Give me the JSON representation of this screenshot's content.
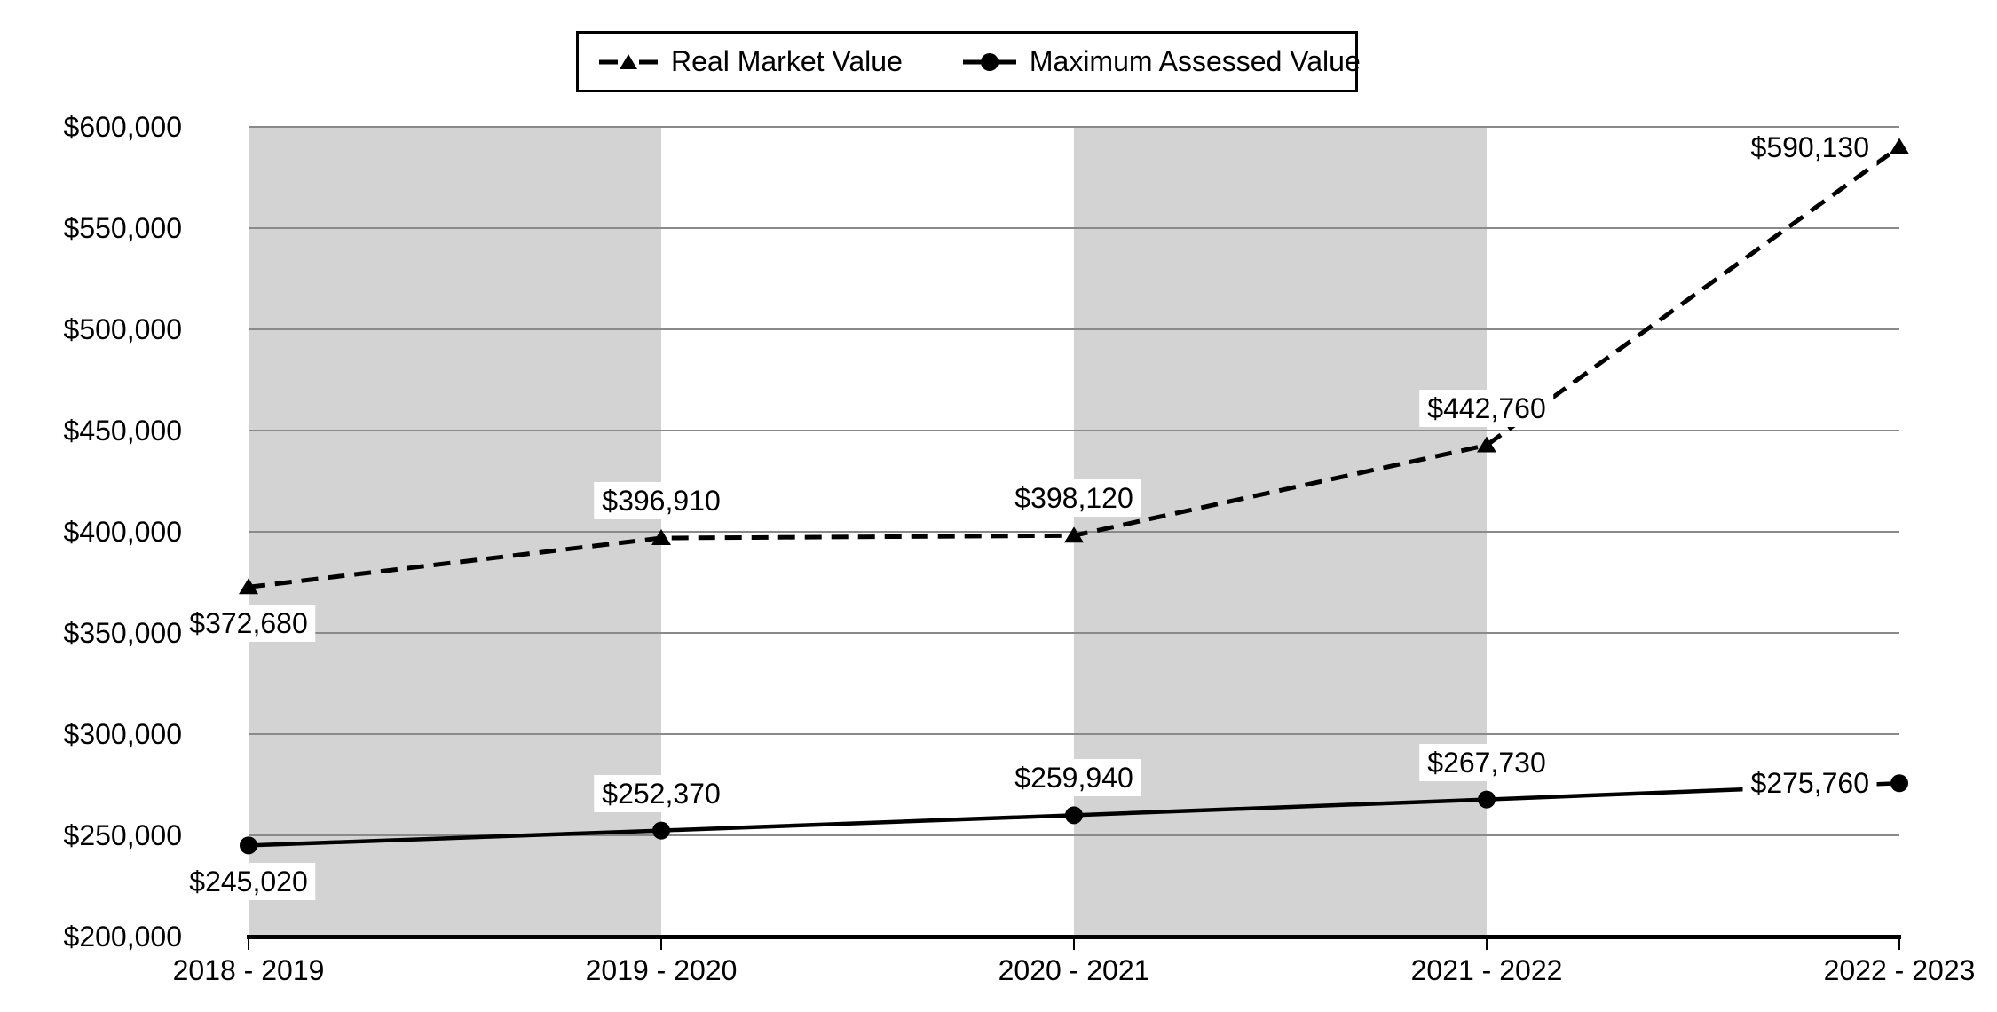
{
  "chart_data": {
    "type": "line",
    "title": "",
    "categories": [
      "2018 - 2019",
      "2019 - 2020",
      "2020 - 2021",
      "2021 - 2022",
      "2022 - 2023"
    ],
    "series": [
      {
        "name": "Real Market Value",
        "values": [
          372680,
          396910,
          398120,
          442760,
          590130
        ],
        "labels": [
          "$372,680",
          "$396,910",
          "$398,120",
          "$442,760",
          "$590,130"
        ],
        "label_positions": [
          "below",
          "above",
          "above",
          "above",
          "left"
        ],
        "line_style": "dashed",
        "marker": "triangle"
      },
      {
        "name": "Maximum Assessed Value",
        "values": [
          245020,
          252370,
          259940,
          267730,
          275760
        ],
        "labels": [
          "$245,020",
          "$252,370",
          "$259,940",
          "$267,730",
          "$275,760"
        ],
        "label_positions": [
          "below",
          "above",
          "above",
          "above",
          "left"
        ],
        "line_style": "solid",
        "marker": "circle"
      }
    ],
    "y_axis": {
      "min": 200000,
      "max": 600000,
      "step": 50000,
      "tick_labels": [
        "$200,000",
        "$250,000",
        "$300,000",
        "$350,000",
        "$400,000",
        "$450,000",
        "$500,000",
        "$550,000",
        "$600,000"
      ]
    },
    "legend_position": "top",
    "grid": true,
    "shaded_band_intervals": [
      [
        0,
        1
      ],
      [
        2,
        3
      ]
    ],
    "colors": {
      "band": "#d3d3d3",
      "gridline": "#8a8a8a",
      "series": "#000000",
      "label_background": "#ffffff",
      "legend_border": "#000000",
      "background": "#ffffff"
    }
  }
}
